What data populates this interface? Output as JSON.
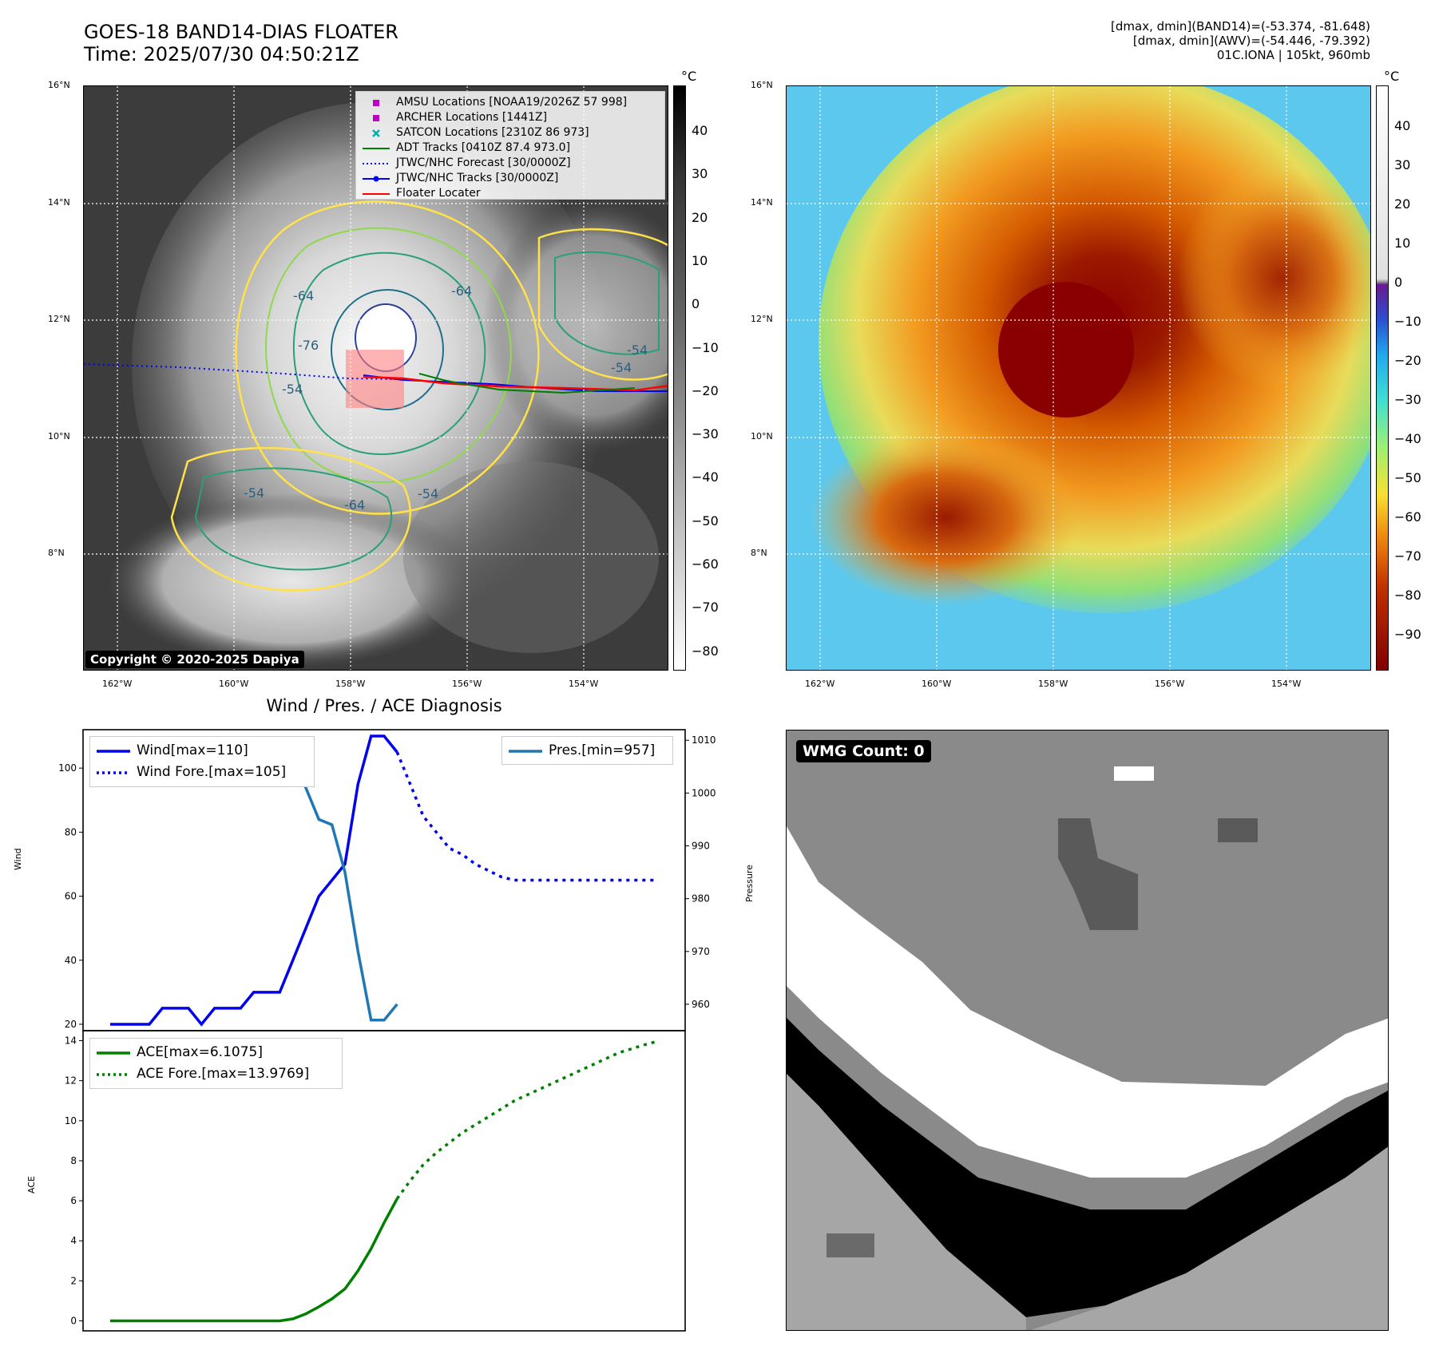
{
  "header": {
    "title_line1": "GOES-18 BAND14-DIAS FLOATER",
    "title_line2": "Time: 2025/07/30 04:50:21Z",
    "meta_line1": "[dmax, dmin](BAND14)=(-53.374, -81.648)",
    "meta_line2": "[dmax, dmin](AWV)=(-54.446, -79.392)",
    "meta_line3": "01C.IONA | 105kt, 960mb"
  },
  "map_ticks": {
    "lat": [
      "16°N",
      "14°N",
      "12°N",
      "10°N",
      "8°N"
    ],
    "lon": [
      "162°W",
      "160°W",
      "158°W",
      "156°W",
      "154°W"
    ]
  },
  "ir_panel": {
    "colorbar_unit": "°C",
    "colorbar_ticks": [
      "40",
      "30",
      "20",
      "10",
      "0",
      "−10",
      "−20",
      "−30",
      "−40",
      "−50",
      "−60",
      "−70",
      "−80"
    ],
    "copyright": "Copyright © 2020-2025 Dapiya",
    "contour_labels": [
      "-64",
      "-64",
      "-76",
      "-54",
      "-54",
      "-64",
      "-54",
      "-54",
      "-54"
    ],
    "legend": [
      {
        "label": "AMSU Locations [NOAA19/2026Z 57 998]",
        "marker": "square",
        "color": "#c000c0"
      },
      {
        "label": "ARCHER Locations [1441Z]",
        "marker": "square",
        "color": "#c000c0"
      },
      {
        "label": "SATCON Locations [2310Z 86 973]",
        "marker": "x",
        "color": "#00b0b0"
      },
      {
        "label": "ADT Tracks [0410Z 87.4 973.0]",
        "marker": "line",
        "color": "#008000"
      },
      {
        "label": "JTWC/NHC Forecast [30/0000Z]",
        "marker": "dotted",
        "color": "#0000ff"
      },
      {
        "label": "JTWC/NHC Tracks [30/0000Z]",
        "marker": "line-dot",
        "color": "#0000ff"
      },
      {
        "label": "Floater Locater",
        "marker": "line",
        "color": "#ff0000"
      }
    ]
  },
  "awv_panel": {
    "colorbar_unit": "°C",
    "colorbar_ticks": [
      "40",
      "30",
      "20",
      "10",
      "0",
      "−10",
      "−20",
      "−30",
      "−40",
      "−50",
      "−60",
      "−70",
      "−80",
      "−90"
    ]
  },
  "diagnosis": {
    "title": "Wind / Pres. / ACE Diagnosis",
    "wind_ylabel": "Wind",
    "pres_ylabel": "Pressure",
    "ace_ylabel": "ACE",
    "wind_legend": "Wind[max=110]",
    "wind_fore_legend": "Wind Fore.[max=105]",
    "pres_legend": "Pres.[min=957]",
    "ace_legend": "ACE[max=6.1075]",
    "ace_fore_legend": "ACE Fore.[max=13.9769]",
    "colors": {
      "wind": "#0000ee",
      "pres": "#1f77b4",
      "ace": "#008000"
    }
  },
  "wmg": {
    "label": "WMG Count: 0"
  },
  "chart_data": [
    {
      "type": "line",
      "title": "Wind / Pres. / ACE Diagnosis",
      "ylabel": "Wind",
      "ylim": [
        18,
        112
      ],
      "yticks": [
        20,
        40,
        60,
        80,
        100
      ],
      "series": [
        {
          "name": "Wind[max=110]",
          "style": "solid",
          "x": [
            0,
            1,
            2,
            3,
            4,
            5,
            6,
            7,
            8,
            9,
            10,
            11,
            12,
            13,
            14,
            15,
            16,
            17,
            18,
            19,
            20,
            21,
            22
          ],
          "y": [
            20,
            20,
            20,
            20,
            25,
            25,
            25,
            20,
            25,
            25,
            25,
            30,
            30,
            30,
            40,
            50,
            60,
            65,
            70,
            95,
            110,
            110,
            105
          ]
        },
        {
          "name": "Wind Fore.[max=105]",
          "style": "dotted",
          "x": [
            22,
            23,
            24,
            25,
            26,
            27,
            28,
            29,
            30,
            31,
            32,
            33,
            34,
            35,
            36,
            37,
            38,
            39,
            40,
            41,
            42
          ],
          "y": [
            105,
            95,
            85,
            80,
            75,
            73,
            70,
            68,
            66,
            65,
            65,
            65,
            65,
            65,
            65,
            65,
            65,
            65,
            65,
            65,
            65
          ]
        }
      ]
    },
    {
      "type": "line",
      "ylabel": "Pressure",
      "ylim": [
        955,
        1012
      ],
      "yticks": [
        960,
        970,
        980,
        990,
        1000,
        1010
      ],
      "series": [
        {
          "name": "Pres.[min=957]",
          "style": "solid",
          "x": [
            0,
            1,
            2,
            3,
            4,
            5,
            6,
            7,
            8,
            9,
            10,
            11,
            12,
            13,
            14,
            15,
            16,
            17,
            18,
            19,
            20,
            21,
            22
          ],
          "y": [
            1010,
            1010,
            1010,
            1009,
            1009,
            1008,
            1008,
            1010,
            1009,
            1009,
            1008,
            1009,
            1008,
            1008,
            1005,
            1001,
            995,
            994,
            985,
            970,
            957,
            957,
            960
          ]
        }
      ]
    },
    {
      "type": "line",
      "ylabel": "ACE",
      "ylim": [
        -0.5,
        14.5
      ],
      "yticks": [
        0,
        2,
        4,
        6,
        8,
        10,
        12,
        14
      ],
      "series": [
        {
          "name": "ACE[max=6.1075]",
          "style": "solid",
          "x": [
            0,
            1,
            2,
            3,
            4,
            5,
            6,
            7,
            8,
            9,
            10,
            11,
            12,
            13,
            14,
            15,
            16,
            17,
            18,
            19,
            20,
            21,
            22
          ],
          "y": [
            0,
            0,
            0,
            0,
            0,
            0,
            0,
            0,
            0,
            0,
            0,
            0,
            0,
            0,
            0.1,
            0.35,
            0.7,
            1.1,
            1.6,
            2.5,
            3.6,
            4.9,
            6.1075
          ]
        },
        {
          "name": "ACE Fore.[max=13.9769]",
          "style": "dotted",
          "x": [
            22,
            23,
            24,
            25,
            26,
            27,
            28,
            29,
            30,
            31,
            32,
            33,
            34,
            35,
            36,
            37,
            38,
            39,
            40,
            41,
            42
          ],
          "y": [
            6.1075,
            7.0,
            7.8,
            8.4,
            8.9,
            9.4,
            9.8,
            10.2,
            10.6,
            11.0,
            11.3,
            11.6,
            11.9,
            12.2,
            12.5,
            12.8,
            13.1,
            13.4,
            13.6,
            13.8,
            13.9769
          ]
        }
      ]
    }
  ]
}
